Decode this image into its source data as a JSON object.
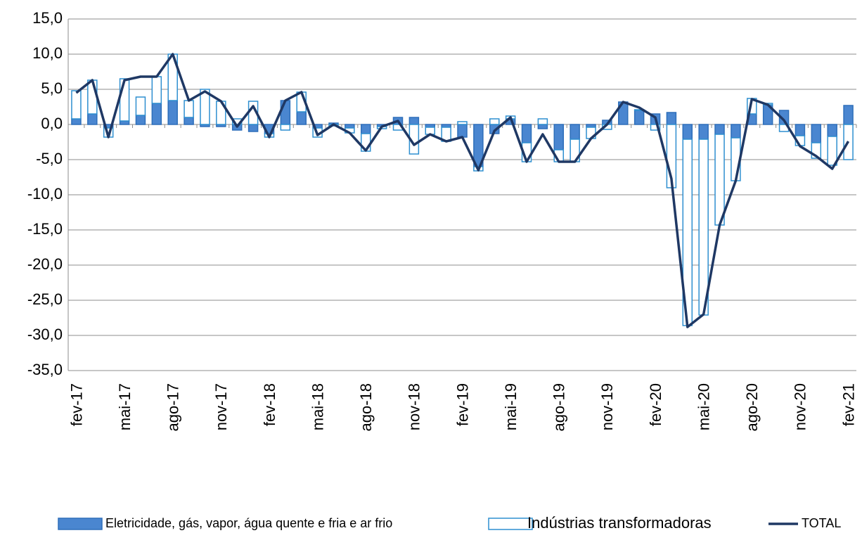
{
  "chart_data": {
    "type": "bar_line",
    "categories": [
      "fev-17",
      null,
      null,
      "mai-17",
      null,
      null,
      "ago-17",
      null,
      null,
      "nov-17",
      null,
      null,
      "fev-18",
      null,
      null,
      "mai-18",
      null,
      null,
      "ago-18",
      null,
      null,
      "nov-18",
      null,
      null,
      "fev-19",
      null,
      null,
      "mai-19",
      null,
      null,
      "ago-19",
      null,
      null,
      "nov-19",
      null,
      null,
      "fev-20",
      null,
      null,
      "mai-20",
      null,
      null,
      "ago-20",
      null,
      null,
      "nov-20",
      null,
      null,
      "fev-21"
    ],
    "series": [
      {
        "name": "Eletricidade, gás, vapor, água quente e fria e ar frio",
        "kind": "bar",
        "color": "#4a86d0",
        "values": [
          0.8,
          1.5,
          -0.5,
          0.5,
          1.3,
          3.0,
          3.4,
          1.0,
          -0.3,
          -0.3,
          -0.8,
          -1.0,
          -1.3,
          3.4,
          1.8,
          -0.5,
          0.2,
          -0.5,
          -1.3,
          -0.3,
          1.0,
          1.0,
          -0.4,
          -0.4,
          -1.8,
          -6.0,
          -1.3,
          0.8,
          -2.6,
          -0.6,
          -3.6,
          -2.1,
          -0.4,
          0.6,
          3.2,
          2.0,
          1.5,
          1.7,
          -2.1,
          -2.1,
          -1.4,
          -1.9,
          1.5,
          2.8,
          2.0,
          -1.6,
          -2.6,
          -1.7,
          2.7
        ]
      },
      {
        "name": "Indústrias transformadoras",
        "kind": "bar",
        "color": "#ffffff",
        "values": [
          4.0,
          4.8,
          -1.3,
          6.0,
          2.6,
          3.8,
          6.6,
          2.4,
          5.0,
          3.3,
          0.8,
          3.3,
          -0.5,
          -0.8,
          2.8,
          -1.3,
          -0.2,
          -0.7,
          -2.5,
          -0.3,
          -0.8,
          -4.2,
          -1.0,
          -2.0,
          0.4,
          -0.6,
          0.8,
          0.4,
          -2.7,
          0.8,
          -1.7,
          -3.2,
          -1.6,
          -0.7,
          0.0,
          0.1,
          -0.8,
          -9.0,
          -26.5,
          -25.0,
          -12.9,
          -6.1,
          2.2,
          0.2,
          -1.0,
          -1.4,
          -2.2,
          -4.1,
          -5.0
        ]
      },
      {
        "name": "TOTAL",
        "kind": "line",
        "color": "#1f3864",
        "values": [
          4.5,
          6.3,
          -1.8,
          6.3,
          6.8,
          6.8,
          10.0,
          3.4,
          4.7,
          3.3,
          -0.3,
          2.6,
          -1.8,
          3.4,
          4.6,
          -1.5,
          0.0,
          -1.2,
          -3.7,
          -0.3,
          0.5,
          -2.9,
          -1.4,
          -2.4,
          -1.8,
          -6.5,
          -0.9,
          1.0,
          -5.3,
          -1.4,
          -5.3,
          -5.3,
          -2.0,
          0.0,
          3.2,
          2.4,
          1.0,
          -7.7,
          -28.8,
          -27.0,
          -14.3,
          -8.0,
          3.6,
          2.8,
          0.6,
          -3.1,
          -4.5,
          -6.3,
          -2.4
        ]
      }
    ],
    "ylim": [
      -35,
      15
    ],
    "yticks": [
      {
        "value": -35,
        "label": "-35,0"
      },
      {
        "value": -30,
        "label": "-30,0"
      },
      {
        "value": -25,
        "label": "-25,0"
      },
      {
        "value": -20,
        "label": "-20,0"
      },
      {
        "value": -15,
        "label": "-15,0"
      },
      {
        "value": -10,
        "label": "-10,0"
      },
      {
        "value": -5,
        "label": "-5,0"
      },
      {
        "value": 0,
        "label": "0,0"
      },
      {
        "value": 5,
        "label": "5,0"
      },
      {
        "value": 10,
        "label": "10,0"
      },
      {
        "value": 15,
        "label": "15,0"
      }
    ],
    "grid": true,
    "legend": "bottom"
  }
}
